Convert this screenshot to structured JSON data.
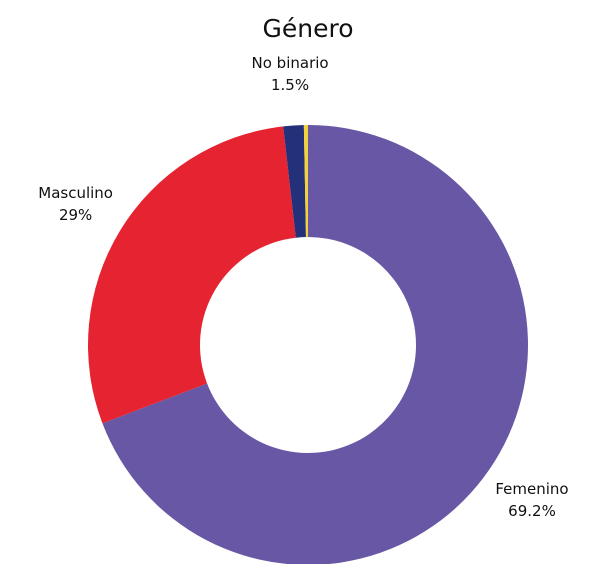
{
  "chart_data": {
    "type": "donut",
    "title": "Género",
    "categories": [
      "Femenino",
      "Masculino",
      "No binario",
      null
    ],
    "values": [
      69.2,
      29,
      1.5,
      0.3
    ],
    "value_labels": [
      "69.2%",
      "29%",
      "1.5%",
      null
    ],
    "colors": [
      "#6757a4",
      "#e52331",
      "#24317a",
      "#f1d23a"
    ]
  }
}
